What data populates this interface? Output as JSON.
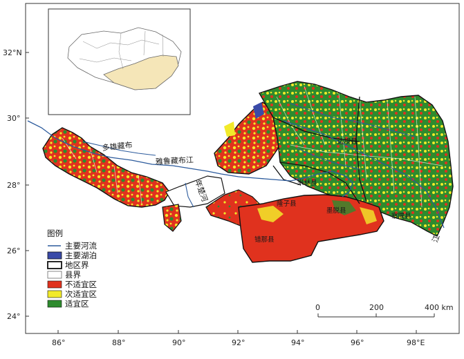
{
  "axes": {
    "lon_labels": [
      "86°",
      "88°",
      "90°",
      "92°",
      "94°",
      "96°",
      "98°E"
    ],
    "lat_labels": [
      "32°N",
      "30°",
      "28°",
      "26°",
      "24°"
    ]
  },
  "rivers": {
    "duoxiong": "多雄藏布",
    "yarlung": "雅鲁藏布江",
    "nianchu": "年楚河",
    "nujiang": "江"
  },
  "places": {
    "cuona": "错那县",
    "motuo": "墨脱县",
    "chayu": "察隅县",
    "bianba": "边坝县",
    "milin": "米林县",
    "lhunze": "隆子县"
  },
  "legend": {
    "title": "图例",
    "items": [
      {
        "label": "主要河流",
        "kind": "line",
        "color": "#2b5a9c"
      },
      {
        "label": "主要湖泊",
        "kind": "box",
        "color": "#3a4aa8"
      },
      {
        "label": "地区界",
        "kind": "box-thick",
        "color": "#ffffff"
      },
      {
        "label": "县界",
        "kind": "box",
        "color": "#ffffff"
      },
      {
        "label": "不适宜区",
        "kind": "box",
        "color": "#e0321e"
      },
      {
        "label": "次适宜区",
        "kind": "box",
        "color": "#f2ea2a"
      },
      {
        "label": "适宜区",
        "kind": "box",
        "color": "#2e8b2e"
      }
    ]
  },
  "scale_bar": {
    "ticks": [
      "0",
      "200",
      "400 km"
    ]
  },
  "colors": {
    "unsuitable": "#e0321e",
    "sub_suitable": "#f2ea2a",
    "suitable": "#2e8b2e",
    "inset_fill": "#f5e6b8"
  }
}
